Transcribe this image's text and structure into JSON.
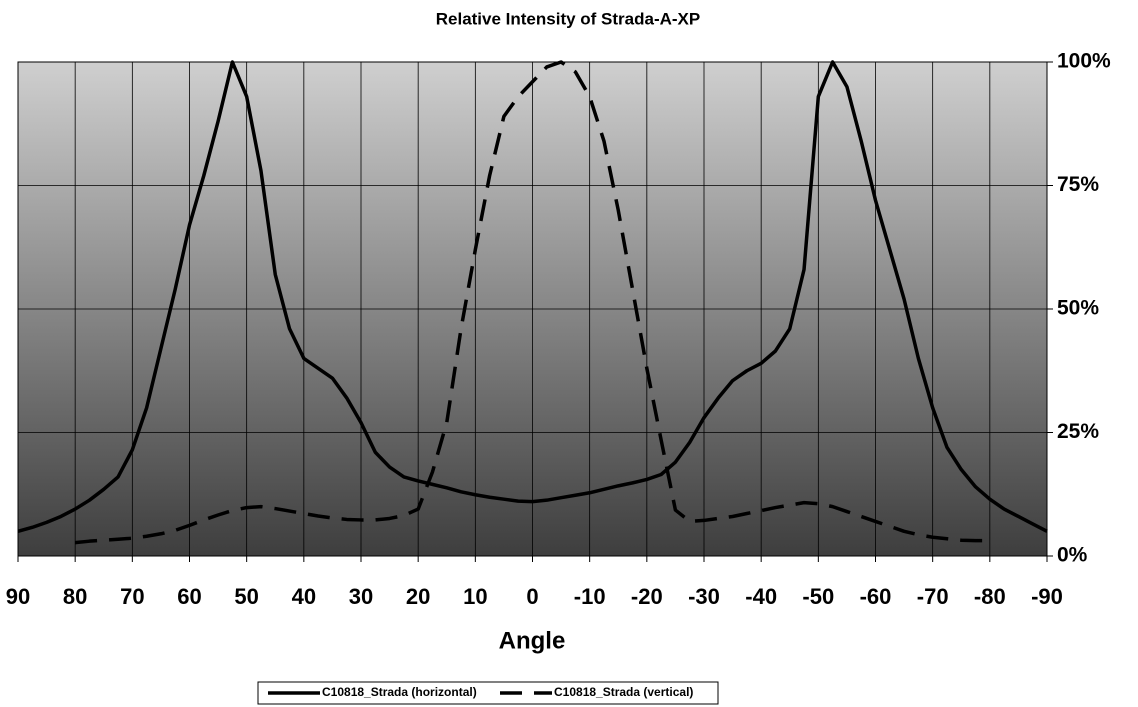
{
  "chart_data": {
    "type": "line",
    "title": "Relative Intensity of Strada-A-XP",
    "x_label": "Angle",
    "x": [
      90,
      87.5,
      85,
      82.5,
      80,
      77.5,
      75,
      72.5,
      70,
      67.5,
      65,
      62.5,
      60,
      57.5,
      55,
      52.5,
      50,
      47.5,
      45,
      42.5,
      40,
      37.5,
      35,
      32.5,
      30,
      27.5,
      25,
      22.5,
      20,
      17.5,
      15,
      12.5,
      10,
      7.5,
      5,
      2.5,
      0,
      -2.5,
      -5,
      -7.5,
      -10,
      -12.5,
      -15,
      -17.5,
      -20,
      -22.5,
      -25,
      -27.5,
      -30,
      -32.5,
      -35,
      -37.5,
      -40,
      -42.5,
      -45,
      -47.5,
      -50,
      -52.5,
      -55,
      -57.5,
      -60,
      -62.5,
      -65,
      -67.5,
      -70,
      -72.5,
      -75,
      -77.5,
      -80,
      -82.5,
      -85,
      -87.5,
      -90
    ],
    "series": [
      {
        "name": "C10818_Strada (horizontal)",
        "color": "#000000",
        "dash": false,
        "values": [
          5,
          5.8,
          6.8,
          8,
          9.5,
          11.3,
          13.5,
          16,
          21.5,
          30,
          42,
          54,
          67,
          77,
          88,
          100,
          93,
          78,
          57,
          46,
          40,
          38,
          36,
          32,
          27,
          21,
          18,
          16,
          15.2,
          14.5,
          13.8,
          13,
          12.4,
          11.9,
          11.5,
          11.1,
          11,
          11.3,
          11.8,
          12.3,
          12.8,
          13.5,
          14.2,
          14.8,
          15.5,
          16.5,
          19,
          23,
          28,
          32,
          35.5,
          37.5,
          39,
          41.5,
          46,
          58,
          93,
          100,
          95,
          84,
          72,
          62,
          52,
          40,
          30,
          22,
          17.5,
          14,
          11.5,
          9.5,
          8,
          6.5,
          5
        ]
      },
      {
        "name": "C10818_Strada (vertical)",
        "color": "#000000",
        "dash": true,
        "values": [
          null,
          null,
          null,
          null,
          2.7,
          3,
          3.2,
          3.4,
          3.6,
          4,
          4.5,
          5.2,
          6.2,
          7.3,
          8.3,
          9.2,
          9.8,
          10,
          9.6,
          9.1,
          8.6,
          8.1,
          7.7,
          7.4,
          7.3,
          7.3,
          7.6,
          8.2,
          9.5,
          17,
          27,
          46,
          62,
          77,
          89,
          93,
          96,
          99,
          100,
          98,
          93,
          84,
          70,
          54,
          38,
          23.5,
          9.3,
          7,
          7.2,
          7.6,
          8,
          8.6,
          9.2,
          9.8,
          10.3,
          10.8,
          10.6,
          10,
          9,
          8,
          7,
          6,
          5,
          4.3,
          3.8,
          3.5,
          3.2,
          3.1,
          3.1,
          null,
          null,
          null,
          null
        ]
      }
    ],
    "xlim": [
      90,
      -90
    ],
    "xticks": [
      90,
      80,
      70,
      60,
      50,
      40,
      30,
      20,
      10,
      0,
      -10,
      -20,
      -30,
      -40,
      -50,
      -60,
      -70,
      -80,
      -90
    ],
    "ylim": [
      0,
      100
    ],
    "yticks": [
      {
        "value": 0,
        "label": "0%"
      },
      {
        "value": 25,
        "label": "25%"
      },
      {
        "value": 50,
        "label": "50%"
      },
      {
        "value": 75,
        "label": "75%"
      },
      {
        "value": 100,
        "label": "100%"
      }
    ],
    "grid": true,
    "legend": "bottom"
  }
}
